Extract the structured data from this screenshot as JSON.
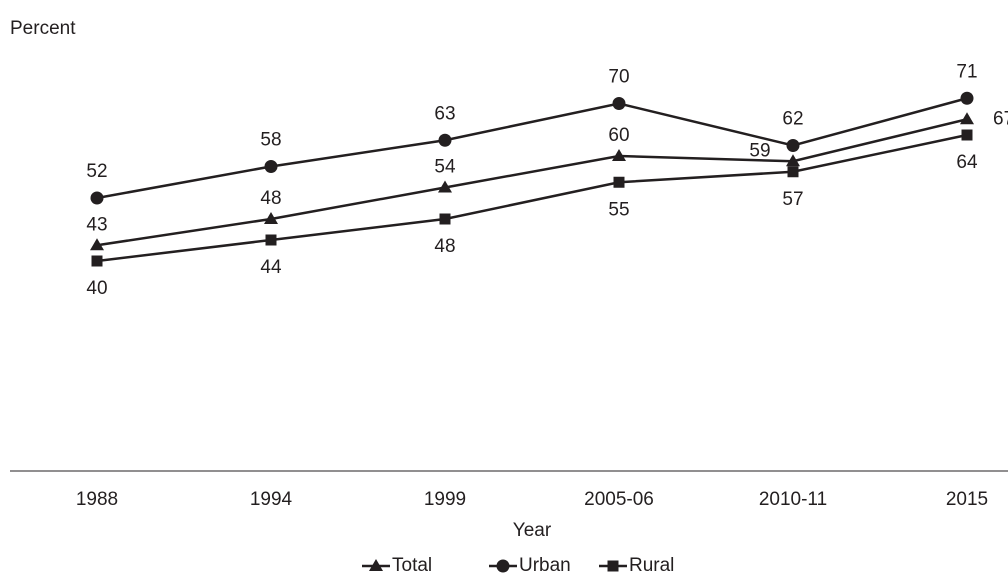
{
  "chart_data": {
    "type": "line",
    "y_label": "Percent",
    "x_label": "Year",
    "categories": [
      "1988",
      "1994",
      "1999",
      "2005-06",
      "2010-11",
      "2015"
    ],
    "series": [
      {
        "name": "Total",
        "color": "#231f20",
        "marker": "triangle",
        "values": [
          43,
          48,
          54,
          60,
          59,
          67
        ]
      },
      {
        "name": "Urban",
        "color": "#231f20",
        "marker": "circle",
        "values": [
          52,
          58,
          63,
          70,
          62,
          71
        ]
      },
      {
        "name": "Rural",
        "color": "#231f20",
        "marker": "square",
        "values": [
          40,
          44,
          48,
          55,
          57,
          64
        ]
      }
    ],
    "ylim": [
      0,
      80
    ],
    "legend": "bottom"
  }
}
